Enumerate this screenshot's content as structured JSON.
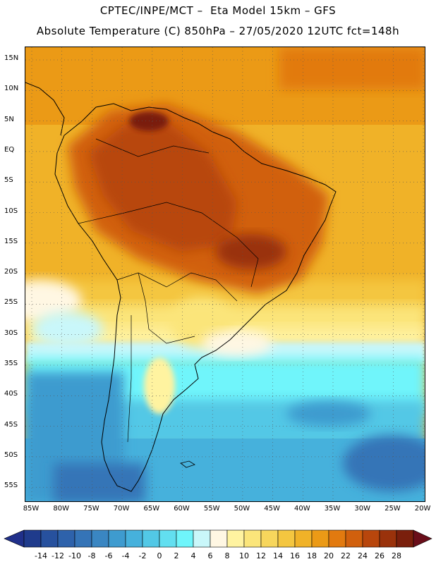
{
  "header": {
    "line1": "CPTEC/INPE/MCT –  Eta Model 15km – GFS",
    "line2": "Absolute Temperature (C) 850hPa – 27/05/2020 12UTC fct=148h"
  },
  "latitude_labels": [
    "15N",
    "10N",
    "5N",
    "EQ",
    "5S",
    "10S",
    "15S",
    "20S",
    "25S",
    "30S",
    "35S",
    "40S",
    "45S",
    "50S",
    "55S"
  ],
  "longitude_labels": [
    "85W",
    "80W",
    "75W",
    "70W",
    "65W",
    "60W",
    "55W",
    "50W",
    "45W",
    "40W",
    "35W",
    "30W",
    "25W",
    "20W"
  ],
  "colorbar": {
    "labels": [
      "-14",
      "-12",
      "-10",
      "-8",
      "-6",
      "-4",
      "-2",
      "0",
      "2",
      "4",
      "6",
      "8",
      "10",
      "12",
      "14",
      "16",
      "18",
      "20",
      "22",
      "24",
      "26",
      "28"
    ],
    "colors": [
      "#1f3b8c",
      "#27519e",
      "#2e62ab",
      "#3574b7",
      "#3a86c2",
      "#3e9bcf",
      "#46b1dc",
      "#52c8e6",
      "#62dff0",
      "#6ff5fb",
      "#c9f7fa",
      "#fff7e3",
      "#fff3a0",
      "#fbe57a",
      "#f7d65c",
      "#f4c640",
      "#f0b228",
      "#eb9a16",
      "#e27a0f",
      "#d1600d",
      "#b8460c",
      "#9a320b",
      "#7a1f0c"
    ],
    "under_color": "#20308a",
    "over_color": "#6a0e1a"
  }
}
